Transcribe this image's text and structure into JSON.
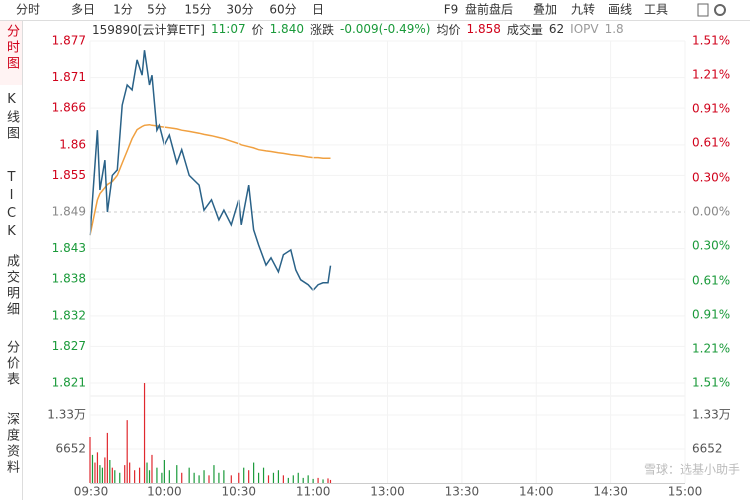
{
  "toolbar": {
    "tabs": [
      "分时",
      "多日",
      "1分",
      "5分",
      "15分",
      "30分",
      "60分",
      "日"
    ],
    "tools": [
      "F9",
      "盘前盘后",
      "叠加",
      "九转",
      "画线",
      "工具"
    ]
  },
  "sidebar": [
    "分时图",
    "K线图",
    "TICK",
    "成交明细",
    "分价表",
    "深度资料"
  ],
  "info": {
    "code": "159890[云计算ETF]",
    "time": "11:07",
    "price_label": "价",
    "price": "1.840",
    "change_label": "涨跌",
    "change": "-0.009(-0.49%)",
    "avg_label": "均价",
    "avg": "1.858",
    "volume_label": "成交量",
    "volume": "62",
    "iopv_label": "IOPV",
    "iopv": "1.8"
  },
  "watermark": "雪球：选基小助手",
  "chart_data": [
    {
      "type": "line",
      "xlim": [
        0,
        240
      ],
      "x": [
        0,
        3,
        4,
        6,
        7,
        9,
        11,
        13,
        15,
        17,
        19,
        21,
        22,
        24,
        25,
        27,
        28,
        30,
        32,
        35,
        37,
        40,
        44,
        46,
        49,
        52,
        54,
        57,
        60,
        61,
        64,
        66,
        68,
        71,
        73,
        76,
        78,
        81,
        83,
        85,
        88,
        90,
        92,
        94,
        96,
        97
      ],
      "series": [
        {
          "name": "价",
          "color": "#2a6288",
          "values": [
            1.8452,
            1.8624,
            1.8526,
            1.8575,
            1.849,
            1.855,
            1.8559,
            1.8665,
            1.8698,
            1.869,
            1.8739,
            1.8714,
            1.8755,
            1.8698,
            1.8714,
            1.8624,
            1.8632,
            1.86,
            1.8616,
            1.857,
            1.8592,
            1.855,
            1.8534,
            1.8493,
            1.851,
            1.8477,
            1.8493,
            1.8469,
            1.851,
            1.8469,
            1.8534,
            1.8461,
            1.8436,
            1.8403,
            1.8415,
            1.8392,
            1.842,
            1.8428,
            1.8395,
            1.8379,
            1.8371,
            1.8362,
            1.8371,
            1.8374,
            1.8374,
            1.8402
          ]
        },
        {
          "name": "均价",
          "color": "#f0a040",
          "values": [
            1.8452,
            1.851,
            1.852,
            1.853,
            1.8535,
            1.854,
            1.855,
            1.857,
            1.859,
            1.861,
            1.8625,
            1.863,
            1.8632,
            1.8633,
            1.8632,
            1.8631,
            1.863,
            1.8629,
            1.8628,
            1.8626,
            1.8624,
            1.8622,
            1.8619,
            1.8617,
            1.8615,
            1.8612,
            1.861,
            1.8606,
            1.8602,
            1.86,
            1.8597,
            1.8595,
            1.8592,
            1.859,
            1.8589,
            1.8587,
            1.8586,
            1.8584,
            1.8583,
            1.8582,
            1.858,
            1.8579,
            1.8579,
            1.8578,
            1.8578,
            1.8578
          ]
        }
      ],
      "ylim": [
        1.821,
        1.877
      ],
      "yticks": [
        1.877,
        1.871,
        1.866,
        1.86,
        1.855,
        1.849,
        1.843,
        1.838,
        1.832,
        1.827,
        1.821
      ],
      "y2lim": [
        -1.51,
        1.51
      ],
      "y2ticks": [
        {
          "value": 1.51,
          "label": "1.51%"
        },
        {
          "value": 1.21,
          "label": "1.21%"
        },
        {
          "value": 0.91,
          "label": "0.91%"
        },
        {
          "value": 0.61,
          "label": "0.61%"
        },
        {
          "value": 0.3,
          "label": "0.30%"
        },
        {
          "value": 0,
          "label": "0.00%"
        },
        {
          "value": -0.3,
          "label": "0.30%"
        },
        {
          "value": -0.61,
          "label": "0.61%"
        },
        {
          "value": -0.91,
          "label": "0.91%"
        },
        {
          "value": -1.21,
          "label": "1.21%"
        },
        {
          "value": -1.51,
          "label": "1.51%"
        }
      ]
    },
    {
      "type": "bar",
      "xlim": [
        0,
        240
      ],
      "xticks": [
        {
          "value": 0,
          "label": "09:30"
        },
        {
          "value": 30,
          "label": "10:00"
        },
        {
          "value": 60,
          "label": "10:30"
        },
        {
          "value": 90,
          "label": "11:00"
        },
        {
          "value": 120,
          "label": "13:00"
        },
        {
          "value": 150,
          "label": "13:30"
        },
        {
          "value": 180,
          "label": "14:00"
        },
        {
          "value": 210,
          "label": "14:30"
        },
        {
          "value": 240,
          "label": "15:00"
        }
      ],
      "x": [
        0,
        1,
        2,
        3,
        4,
        5,
        6,
        7,
        8,
        9,
        10,
        12,
        14,
        15,
        16,
        18,
        20,
        22,
        23,
        24,
        25,
        27,
        29,
        30,
        32,
        35,
        37,
        40,
        42,
        44,
        46,
        48,
        50,
        52,
        54,
        57,
        60,
        62,
        64,
        66,
        68,
        70,
        72,
        74,
        76,
        78,
        80,
        82,
        84,
        86,
        88,
        90,
        92,
        94,
        96,
        97
      ],
      "values": [
        9000,
        5500,
        4000,
        6000,
        3500,
        3000,
        5000,
        9800,
        4500,
        3000,
        2500,
        2000,
        3500,
        12300,
        4000,
        2500,
        3000,
        19560,
        4000,
        2500,
        5500,
        3000,
        2000,
        4500,
        2500,
        3500,
        2000,
        3000,
        2000,
        1500,
        2500,
        1500,
        3500,
        2000,
        2500,
        1500,
        2000,
        3000,
        2500,
        4000,
        2000,
        3000,
        1500,
        2000,
        2500,
        1500,
        1000,
        1500,
        2000,
        1000,
        1500,
        800,
        1000,
        700,
        900,
        600
      ],
      "colors": [
        "#e0282e",
        "#1a9a3a",
        "#e0282e",
        "#e0282e",
        "#1a9a3a",
        "#1a9a3a",
        "#e0282e",
        "#e0282e",
        "#1a9a3a",
        "#e0282e",
        "#1a9a3a",
        "#1a9a3a",
        "#e0282e",
        "#e0282e",
        "#e0282e",
        "#e0282e",
        "#e0282e",
        "#e0282e",
        "#1a9a3a",
        "#1a9a3a",
        "#e0282e",
        "#1a9a3a",
        "#1a9a3a",
        "#1a9a3a",
        "#1a9a3a",
        "#1a9a3a",
        "#e0282e",
        "#1a9a3a",
        "#1a9a3a",
        "#1a9a3a",
        "#1a9a3a",
        "#e0282e",
        "#1a9a3a",
        "#1a9a3a",
        "#1a9a3a",
        "#e0282e",
        "#e0282e",
        "#1a9a3a",
        "#e0282e",
        "#1a9a3a",
        "#1a9a3a",
        "#1a9a3a",
        "#e0282e",
        "#1a9a3a",
        "#1a9a3a",
        "#e0282e",
        "#1a9a3a",
        "#1a9a3a",
        "#1a9a3a",
        "#1a9a3a",
        "#1a9a3a",
        "#1a9a3a",
        "#e0282e",
        "#1a9a3a",
        "#e0282e",
        "#e0282e"
      ],
      "ylim": [
        0,
        19956
      ],
      "yticks": [
        {
          "value": 13304,
          "label": "1.33万"
        },
        6652
      ]
    }
  ]
}
